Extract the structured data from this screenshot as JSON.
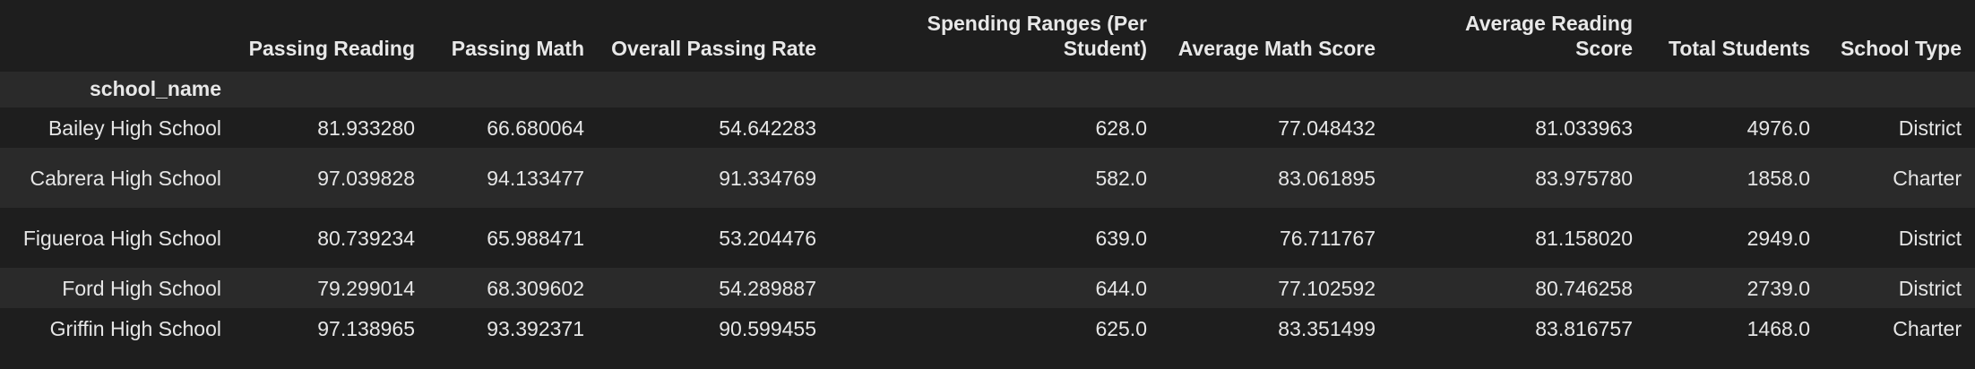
{
  "table": {
    "index_name": "school_name",
    "columns": [
      "Passing Reading",
      "Passing Math",
      "Overall Passing Rate",
      "Spending Ranges (Per Student)",
      "Average Math Score",
      "Average Reading Score",
      "Total Students",
      "School Type"
    ],
    "rows": [
      {
        "name": "Bailey High School",
        "values": [
          "81.933280",
          "66.680064",
          "54.642283",
          "628.0",
          "77.048432",
          "81.033963",
          "4976.0",
          "District"
        ]
      },
      {
        "name": "Cabrera High School",
        "values": [
          "97.039828",
          "94.133477",
          "91.334769",
          "582.0",
          "83.061895",
          "83.975780",
          "1858.0",
          "Charter"
        ]
      },
      {
        "name": "Figueroa High School",
        "values": [
          "80.739234",
          "65.988471",
          "53.204476",
          "639.0",
          "76.711767",
          "81.158020",
          "2949.0",
          "District"
        ]
      },
      {
        "name": "Ford High School",
        "values": [
          "79.299014",
          "68.309602",
          "54.289887",
          "644.0",
          "77.102592",
          "80.746258",
          "2739.0",
          "District"
        ]
      },
      {
        "name": "Griffin High School",
        "values": [
          "97.138965",
          "93.392371",
          "90.599455",
          "625.0",
          "83.351499",
          "83.816757",
          "1468.0",
          "Charter"
        ]
      }
    ]
  }
}
